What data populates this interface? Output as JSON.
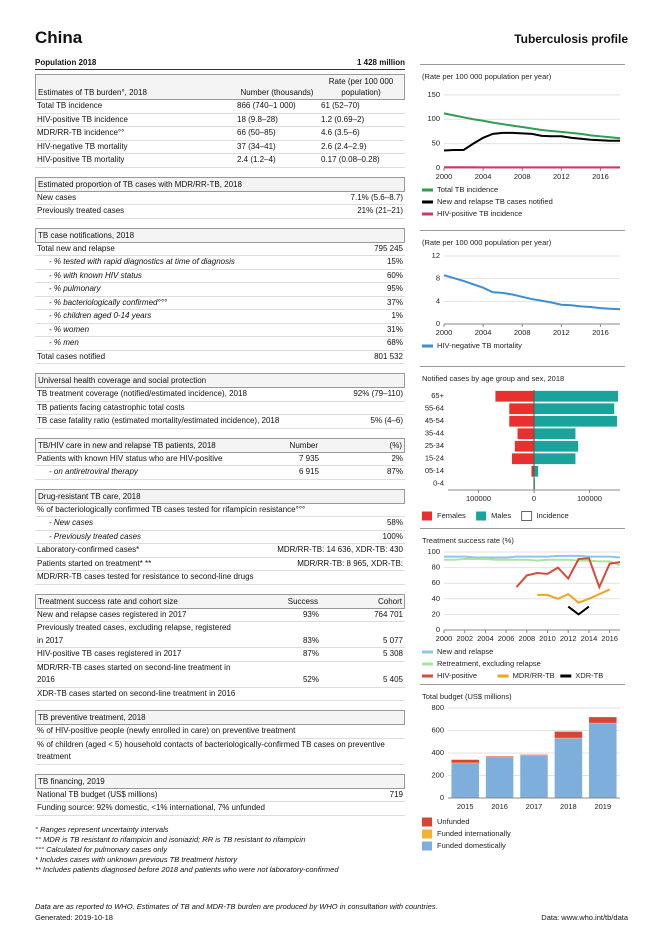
{
  "header": {
    "country": "China",
    "title": "Tuberculosis profile",
    "population_label": "Population 2018",
    "population": "1 428 million"
  },
  "sections": [
    {
      "header": [
        "Estimates of TB burden°, 2018",
        "Number (thousands)",
        "Rate (per 100 000 population)"
      ],
      "rows": [
        [
          "Total TB incidence",
          "866 (740–1 000)",
          "61 (52–70)"
        ],
        [
          "HIV-positive TB incidence",
          "18 (9.8–28)",
          "1.2 (0.69–2)"
        ],
        [
          "MDR/RR-TB incidence°°",
          "66 (50–85)",
          "4.6 (3.5–6)"
        ],
        [
          "HIV-negative TB mortality",
          "37 (34–41)",
          "2.6 (2.4–2.9)"
        ],
        [
          "HIV-positive TB mortality",
          "2.4 (1.2–4)",
          "0.17 (0.08–0.28)"
        ]
      ]
    },
    {
      "header": [
        "Estimated proportion of TB cases with MDR/RR-TB, 2018"
      ],
      "rows": [
        [
          "New cases",
          "7.1% (5.6–8.7)"
        ],
        [
          "Previously treated cases",
          "21% (21–21)"
        ]
      ]
    },
    {
      "header": [
        "TB case notifications, 2018"
      ],
      "rows": [
        [
          "Total new and relapse",
          "795 245"
        ],
        [
          "- % tested with rapid diagnostics at time of diagnosis",
          "15%"
        ],
        [
          "- % with known HIV status",
          "60%"
        ],
        [
          "- % pulmonary",
          "95%"
        ],
        [
          "- % bacteriologically confirmed°°°",
          "37%"
        ],
        [
          "- % children aged 0-14 years",
          "1%"
        ],
        [
          "- % women",
          "31%"
        ],
        [
          "- % men",
          "68%"
        ],
        [
          "Total cases notified",
          "801 532"
        ]
      ]
    },
    {
      "header": [
        "Universal health coverage and social protection"
      ],
      "rows": [
        [
          "TB treatment coverage (notified/estimated incidence), 2018",
          "92% (79–110)"
        ],
        [
          "TB patients facing catastrophic total costs"
        ],
        [
          "TB case fatality ratio (estimated mortality/estimated incidence), 2018",
          "5% (4–6)"
        ]
      ]
    },
    {
      "header": [
        "TB/HIV care in new and relapse TB patients, 2018",
        "Number",
        "(%)"
      ],
      "rows": [
        [
          "Patients with known HIV status who are HIV-positive",
          "7 935",
          "2%"
        ],
        [
          "- on antiretroviral therapy",
          "6 915",
          "87%"
        ]
      ]
    },
    {
      "header": [
        "Drug-resistant TB care, 2018"
      ],
      "rows": [
        [
          "% of bacteriologically confirmed TB cases tested for rifampicin resistance°°°"
        ],
        [
          "- New cases",
          "58%"
        ],
        [
          "- Previously treated cases",
          "100%"
        ],
        [
          "Laboratory-confirmed cases*",
          "MDR/RR-TB: 14 636, XDR-TB: 430"
        ],
        [
          "Patients started on treatment* **",
          "MDR/RR-TB: 8 965, XDR-TB:"
        ],
        [
          "MDR/RR-TB cases tested for resistance to second-line drugs"
        ]
      ]
    },
    {
      "header": [
        "Treatment success rate and cohort size",
        "Success",
        "Cohort"
      ],
      "rows": [
        [
          "New and relapse cases registered in 2017",
          "93%",
          "764 701"
        ],
        [
          "Previously treated cases, excluding relapse, registered in 2017",
          "83%",
          "5 077"
        ],
        [
          "HIV-positive TB cases registered in 2017",
          "87%",
          "5 308"
        ],
        [
          "MDR/RR-TB cases started on second-line treatment in 2016",
          "52%",
          "5 405"
        ],
        [
          "XDR-TB cases started on second-line treatment in 2016"
        ]
      ]
    },
    {
      "header": [
        "TB preventive treatment, 2018"
      ],
      "rows": [
        [
          "% of HIV-positive people (newly enrolled in care) on preventive treatment"
        ],
        [
          "% of children (aged < 5) household contacts of bacteriologically-confirmed TB cases on preventive treatment"
        ]
      ]
    },
    {
      "header": [
        "TB financing, 2019"
      ],
      "rows": [
        [
          "National TB budget (US$ millions)",
          "719"
        ],
        [
          "Funding source: 92% domestic, <1% international, 7% unfunded"
        ]
      ]
    }
  ],
  "footnotes": [
    "° Ranges represent uncertainty intervals",
    "°° MDR is TB resistant to rifampicin and isoniazid; RR is TB resistant to rifampicin",
    "°°° Calculated for pulmonary cases only",
    "* Includes cases with unknown previous TB treatment history",
    "** Includes patients diagnosed before 2018 and patients who were not laboratory-confirmed"
  ],
  "footer": {
    "note": "Data are as reported to WHO. Estimates of TB and MDR-TB burden are produced by WHO in consultation with countries.",
    "generated": "Generated: 2019-10-18",
    "source": "Data: www.who.int/tb/data"
  },
  "chart_data": [
    {
      "type": "line",
      "title": "(Rate per 100 000 population per year)",
      "x": [
        2000,
        2001,
        2002,
        2003,
        2004,
        2005,
        2006,
        2007,
        2008,
        2009,
        2010,
        2011,
        2012,
        2013,
        2014,
        2015,
        2016,
        2017,
        2018
      ],
      "xlim": [
        2000,
        2018
      ],
      "xticks": [
        2000,
        2004,
        2008,
        2012,
        2016
      ],
      "ylim": [
        0,
        160
      ],
      "yticks": [
        0,
        50,
        100,
        150
      ],
      "series": [
        {
          "name": "Total TB incidence",
          "color": "#2e9e4f",
          "values": [
            112,
            108,
            104,
            100,
            97,
            93,
            90,
            87,
            84,
            81,
            78,
            76,
            74,
            72,
            70,
            67,
            65,
            63,
            61
          ]
        },
        {
          "name": "New and relapse TB cases notified",
          "color": "#000000",
          "values": [
            36,
            37,
            37,
            50,
            62,
            70,
            72,
            72,
            71,
            70,
            66,
            65,
            65,
            62,
            60,
            58,
            57,
            56,
            56
          ]
        },
        {
          "name": "HIV-positive TB incidence",
          "color": "#d6336c",
          "values": [
            1.5,
            1.5,
            1.5,
            1.5,
            1.4,
            1.4,
            1.4,
            1.4,
            1.3,
            1.3,
            1.3,
            1.3,
            1.3,
            1.2,
            1.2,
            1.2,
            1.2,
            1.2,
            1.2
          ]
        }
      ]
    },
    {
      "type": "line",
      "title": "(Rate per 100 000 population per year)",
      "x": [
        2000,
        2001,
        2002,
        2003,
        2004,
        2005,
        2006,
        2007,
        2008,
        2009,
        2010,
        2011,
        2012,
        2013,
        2014,
        2015,
        2016,
        2017,
        2018
      ],
      "xlim": [
        2000,
        2018
      ],
      "xticks": [
        2000,
        2004,
        2008,
        2012,
        2016
      ],
      "ylim": [
        0,
        12
      ],
      "yticks": [
        0,
        4,
        8,
        12
      ],
      "series": [
        {
          "name": "HIV-negative TB mortality",
          "color": "#3b8fd6",
          "values": [
            8.6,
            8.1,
            7.6,
            7.0,
            6.4,
            5.6,
            5.5,
            5.2,
            4.8,
            4.4,
            4.1,
            3.8,
            3.4,
            3.3,
            3.1,
            3.0,
            2.8,
            2.7,
            2.6
          ]
        }
      ]
    },
    {
      "type": "pyramid",
      "title": "Notified cases by age group and sex, 2018",
      "categories": [
        "0-4",
        "05-14",
        "15-24",
        "25-34",
        "35-44",
        "45-54",
        "55-64",
        "65+"
      ],
      "xlim": [
        -155000,
        155000
      ],
      "xticks": [
        {
          "value": -100000,
          "label": "100000"
        },
        0,
        100000
      ],
      "series": [
        {
          "name": "Females",
          "color": "#e8312f",
          "values": [
            1000,
            5000,
            40000,
            35000,
            30000,
            45000,
            45000,
            70000
          ]
        },
        {
          "name": "Males",
          "color": "#1aa39a",
          "values": [
            2000,
            8000,
            75000,
            80000,
            75000,
            150000,
            145000,
            152000
          ]
        }
      ],
      "outline_label": "Incidence"
    },
    {
      "type": "line",
      "title": "Treatment success rate (%)",
      "x": [
        2000,
        2001,
        2002,
        2003,
        2004,
        2005,
        2006,
        2007,
        2008,
        2009,
        2010,
        2011,
        2012,
        2013,
        2014,
        2015,
        2016,
        2017
      ],
      "xlim": [
        2000,
        2017
      ],
      "xticks": [
        2000,
        2002,
        2004,
        2006,
        2008,
        2010,
        2012,
        2014,
        2016
      ],
      "ylim": [
        0,
        100
      ],
      "yticks": [
        0,
        20,
        40,
        60,
        80,
        100
      ],
      "series": [
        {
          "name": "New and relapse",
          "color": "#8ec5ea",
          "values": [
            94,
            94,
            94,
            93,
            93,
            93,
            93,
            94,
            94,
            94,
            94,
            95,
            95,
            95,
            94,
            94,
            94,
            93
          ]
        },
        {
          "name": "Retreatment, excluding relapse",
          "color": "#a8e6a0",
          "values": [
            90,
            90,
            91,
            91,
            91,
            90,
            90,
            90,
            90,
            89,
            90,
            90,
            90,
            89,
            89,
            88,
            88,
            83
          ]
        },
        {
          "name": "HIV-positive",
          "color": "#d84a3a",
          "values": [
            null,
            null,
            null,
            null,
            null,
            null,
            null,
            55,
            70,
            73,
            72,
            80,
            66,
            91,
            92,
            55,
            85,
            87
          ]
        },
        {
          "name": "MDR/RR-TB",
          "color": "#f4a21d",
          "values": [
            null,
            null,
            null,
            null,
            null,
            null,
            null,
            null,
            null,
            45,
            45,
            40,
            46,
            35,
            40,
            46,
            52,
            null
          ]
        },
        {
          "name": "XDR-TB",
          "color": "#000000",
          "values": [
            null,
            null,
            null,
            null,
            null,
            null,
            null,
            null,
            null,
            null,
            null,
            null,
            30,
            20,
            30,
            null,
            null,
            null
          ]
        }
      ]
    },
    {
      "type": "stacked_bar",
      "title": "Total budget (US$ millions)",
      "categories": [
        "2015",
        "2016",
        "2017",
        "2018",
        "2019"
      ],
      "ylim": [
        0,
        800
      ],
      "yticks": [
        0,
        200,
        400,
        600,
        800
      ],
      "series": [
        {
          "name": "Unfunded",
          "color": "#d9443a",
          "values": [
            25,
            5,
            5,
            55,
            51
          ]
        },
        {
          "name": "Funded internationally",
          "color": "#f2b233",
          "values": [
            5,
            5,
            5,
            5,
            3
          ]
        },
        {
          "name": "Funded domestically",
          "color": "#7eaedc",
          "values": [
            310,
            360,
            375,
            530,
            665
          ]
        }
      ]
    }
  ]
}
